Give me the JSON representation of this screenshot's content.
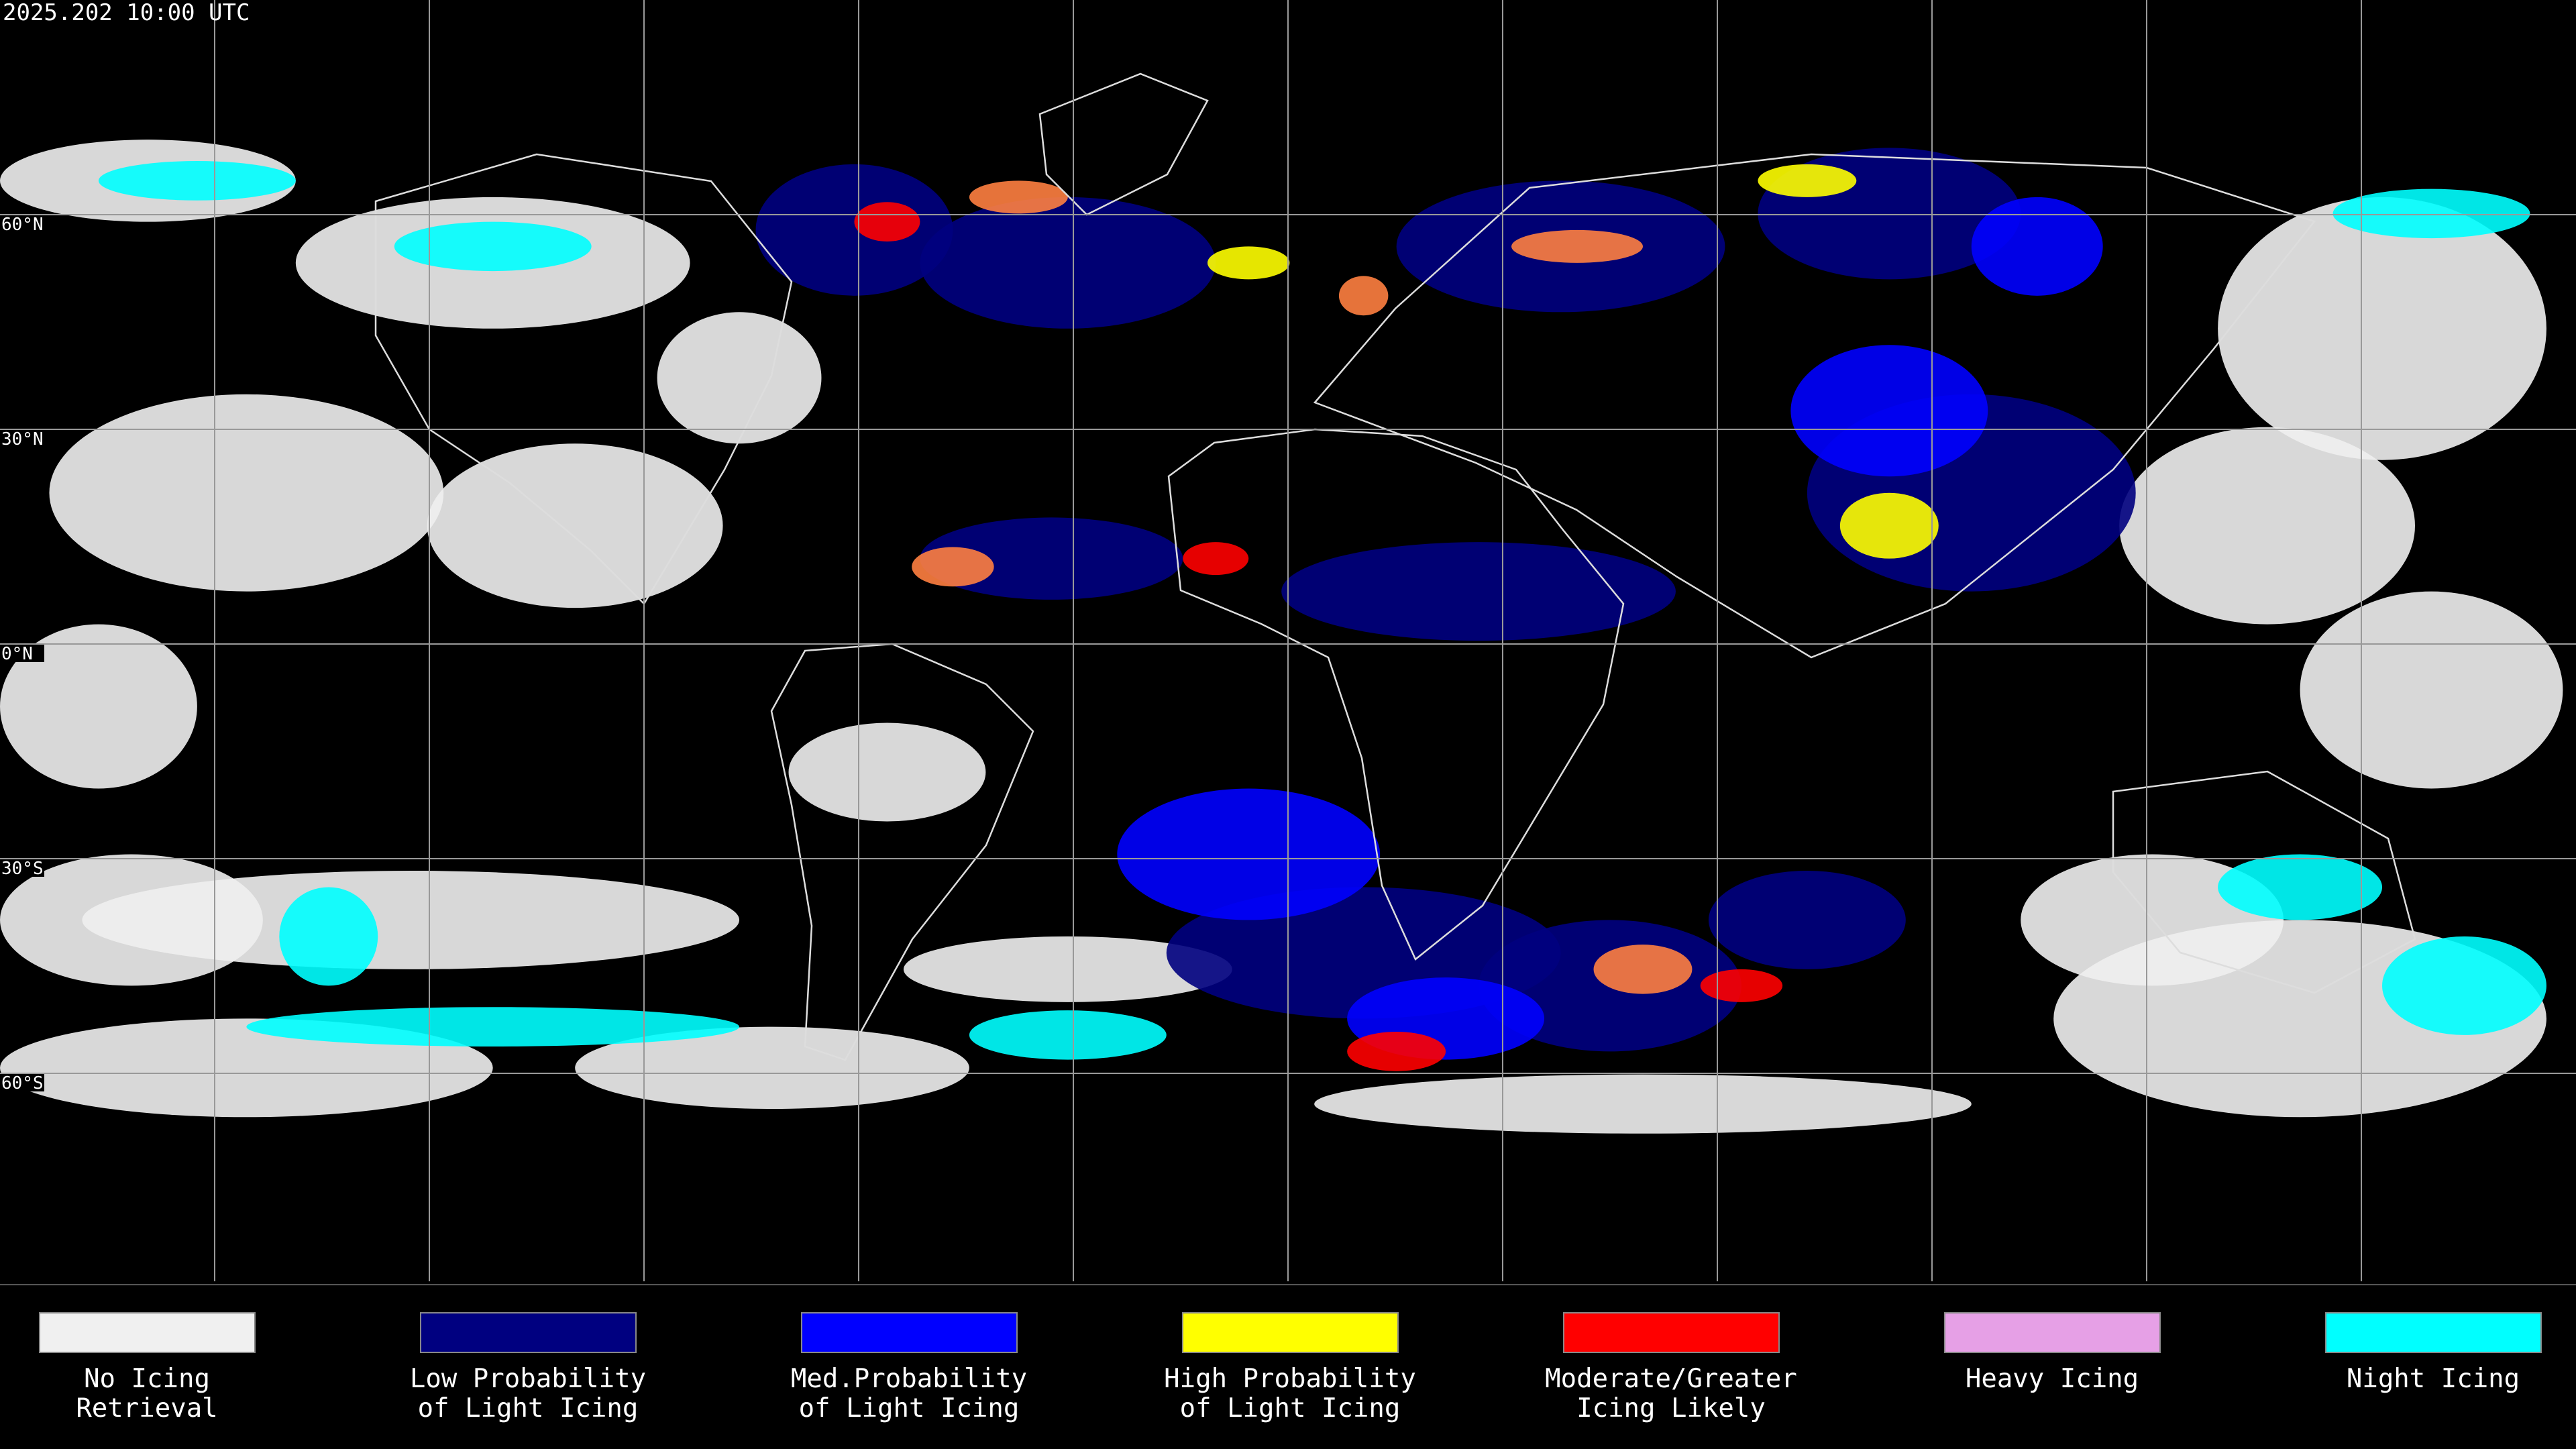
{
  "header": {
    "timestamp": "2025.202 10:00 UTC"
  },
  "map": {
    "latitude_labels": [
      "60°N",
      "30°N",
      "0°N",
      "30°S",
      "60°S"
    ]
  },
  "legend": {
    "items": [
      {
        "lines": [
          "No Icing",
          "Retrieval"
        ],
        "color": "#f0f0f0"
      },
      {
        "lines": [
          "Low Probability",
          "of Light Icing"
        ],
        "color": "#000080"
      },
      {
        "lines": [
          "Med.Probability",
          "of Light Icing"
        ],
        "color": "#0000ff"
      },
      {
        "lines": [
          "High Probability",
          "of Light Icing"
        ],
        "color": "#ffff00"
      },
      {
        "lines": [
          "Moderate/Greater",
          "Icing Likely"
        ],
        "color": "#ff0000"
      },
      {
        "lines": [
          "Heavy Icing"
        ],
        "color": "#e6a0e6"
      },
      {
        "lines": [
          "Night Icing"
        ],
        "color": "#00ffff"
      }
    ]
  }
}
